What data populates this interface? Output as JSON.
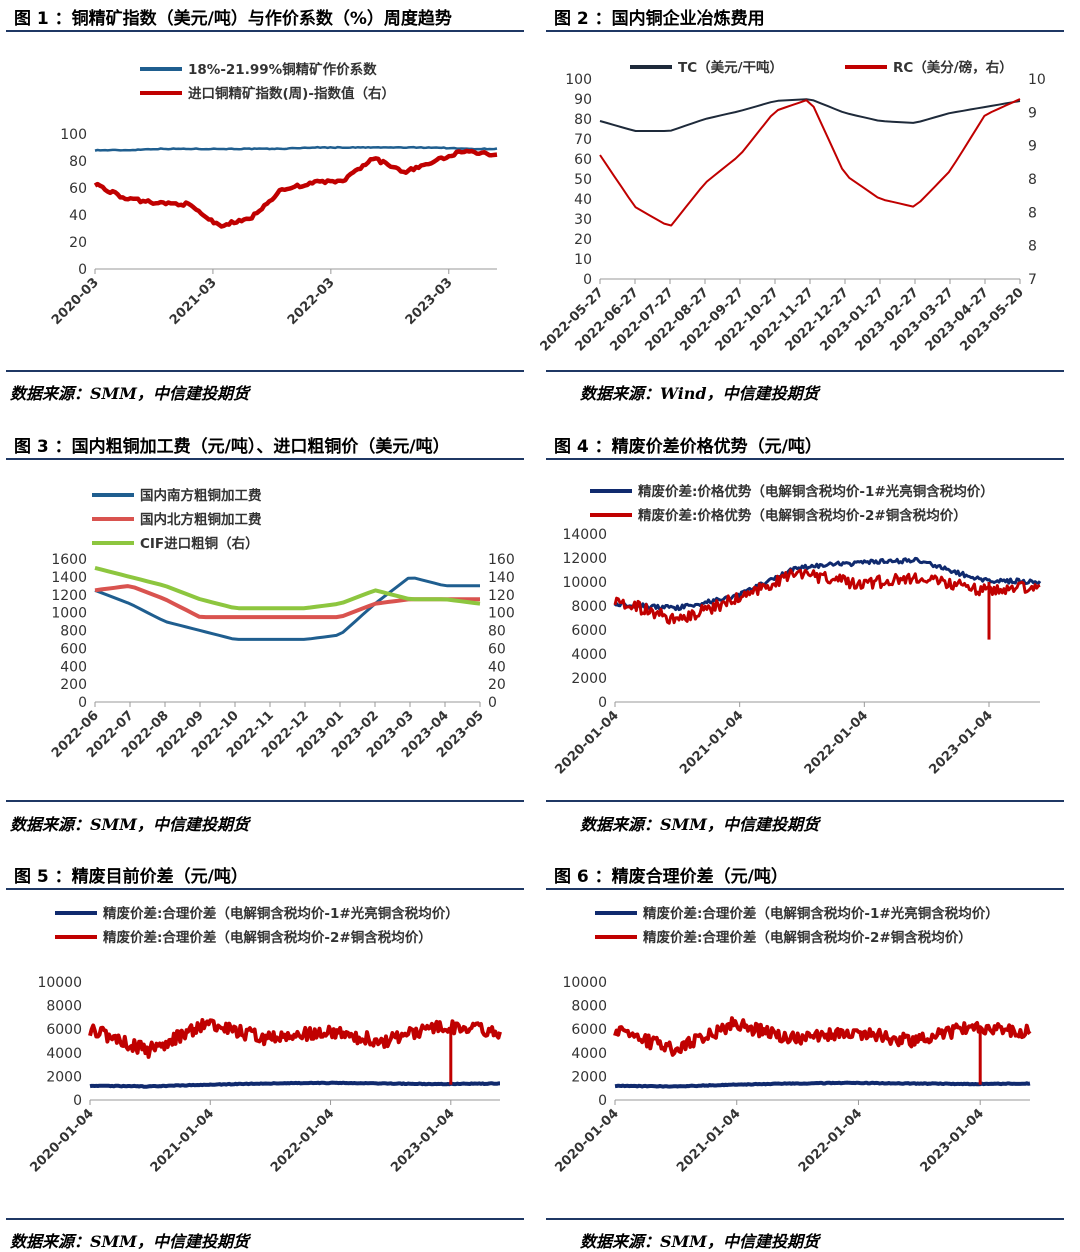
{
  "sources": {
    "row1_left": "数据来源：SMM，中信建投期货",
    "row1_right": "数据来源：Wind，中信建投期货",
    "row2_left": "数据来源：SMM，中信建投期货",
    "row2_right": "数据来源：SMM，中信建投期货",
    "row3_left": "数据来源：SMM，中信建投期货",
    "row3_right": "数据来源：SMM，中信建投期货"
  },
  "chart_data": [
    {
      "id": "fig1",
      "heading": "图 1 ：铜精矿指数（美元/吨）与作价系数（%）周度趋势",
      "type": "line",
      "x": [
        "2020-03",
        "2020-06",
        "2020-09",
        "2020-12",
        "2021-03",
        "2021-06",
        "2021-09",
        "2021-12",
        "2022-03",
        "2022-06",
        "2022-09",
        "2022-12",
        "2023-03",
        "2023-05"
      ],
      "xticks": [
        "2020-03",
        "2021-03",
        "2022-03",
        "2023-03"
      ],
      "ylim": [
        0,
        100
      ],
      "yticks": [
        "0",
        "20",
        "40",
        "60",
        "80",
        "100"
      ],
      "legend": "top",
      "series": [
        {
          "name": "18%-21.99%铜精矿作价系数",
          "color": "#1f5e8f",
          "values": [
            88,
            88,
            89,
            89,
            89,
            89,
            89,
            90,
            90,
            90,
            90,
            90,
            89,
            89
          ]
        },
        {
          "name": "进口铜精矿指数(周)-指数值（右）",
          "color": "#c00000",
          "values": [
            63,
            52,
            49,
            48,
            32,
            37,
            58,
            64,
            65,
            82,
            72,
            80,
            88,
            84
          ]
        }
      ]
    },
    {
      "id": "fig2",
      "heading": "图 2 ：国内铜企业冶炼费用",
      "type": "line",
      "x": [
        "2022-05-27",
        "2022-06-27",
        "2022-07-27",
        "2022-08-27",
        "2022-09-27",
        "2022-10-27",
        "2022-11-27",
        "2022-12-27",
        "2023-01-27",
        "2023-02-27",
        "2023-03-27",
        "2023-04-27",
        "2023-05-20"
      ],
      "ylim": [
        0,
        100
      ],
      "yticks": [
        "0",
        "10",
        "20",
        "30",
        "40",
        "50",
        "60",
        "70",
        "80",
        "90",
        "100"
      ],
      "y2lim": [
        7,
        9.5
      ],
      "y2ticks": [
        "7",
        "8",
        "8",
        "8",
        "9",
        "9",
        "10"
      ],
      "legend": "top",
      "series": [
        {
          "name": "TC（美元/干吨）",
          "color": "#1e2a3a",
          "values": [
            79,
            74,
            74,
            80,
            84,
            89,
            90,
            83,
            79,
            78,
            83,
            86,
            89
          ]
        },
        {
          "name": "RC（美分/磅，右）",
          "color": "#c00000",
          "values": [
            8.55,
            7.9,
            7.65,
            8.2,
            8.55,
            9.1,
            9.25,
            8.3,
            8.0,
            7.9,
            8.35,
            9.05,
            9.25
          ]
        }
      ]
    },
    {
      "id": "fig3",
      "heading": "图 3 ：国内粗铜加工费（元/吨）、进口粗铜价（美元/吨）",
      "type": "line",
      "x": [
        "2022-06",
        "2022-07",
        "2022-08",
        "2022-09",
        "2022-10",
        "2022-11",
        "2022-12",
        "2023-01",
        "2023-02",
        "2023-03",
        "2023-04",
        "2023-05"
      ],
      "ylim": [
        0,
        1600
      ],
      "yticks": [
        "0",
        "200",
        "400",
        "600",
        "800",
        "1000",
        "1200",
        "1400",
        "1600"
      ],
      "y2lim": [
        0,
        160
      ],
      "y2ticks": [
        "0",
        "20",
        "40",
        "60",
        "80",
        "100",
        "120",
        "140",
        "160"
      ],
      "legend": "top",
      "series": [
        {
          "name": "国内南方粗铜加工费",
          "color": "#1f5e8f",
          "values": [
            1250,
            1100,
            900,
            800,
            700,
            700,
            700,
            750,
            1100,
            1400,
            1300,
            1300
          ]
        },
        {
          "name": "国内北方粗铜加工费",
          "color": "#d9534f",
          "values": [
            1250,
            1300,
            1150,
            950,
            950,
            950,
            950,
            950,
            1100,
            1150,
            1150,
            1150
          ]
        },
        {
          "name": "CIF进口粗铜（右）",
          "color": "#8dc63f",
          "values": [
            150,
            140,
            130,
            115,
            105,
            105,
            105,
            110,
            125,
            115,
            115,
            110
          ]
        }
      ]
    },
    {
      "id": "fig4",
      "heading": "图 4 ：精废价差价格优势（元/吨）",
      "type": "line",
      "x": [
        "2020-01-04",
        "2020-07",
        "2021-01-04",
        "2021-07",
        "2022-01-04",
        "2022-07",
        "2023-01-04",
        "2023-05"
      ],
      "xticks": [
        "2020-01-04",
        "2021-01-04",
        "2022-01-04",
        "2023-01-04"
      ],
      "ylim": [
        0,
        14000
      ],
      "yticks": [
        "0",
        "2000",
        "4000",
        "6000",
        "8000",
        "10000",
        "12000",
        "14000"
      ],
      "legend": "top",
      "series": [
        {
          "name": "精废价差:价格优势（电解铜含税均价-1#光亮铜含税均价）",
          "color": "#102a6e",
          "values": [
            8200,
            7800,
            8800,
            11200,
            11600,
            11800,
            10200,
            10000
          ]
        },
        {
          "name": "精废价差:价格优势（电解铜含税均价-2#铜含税均价）",
          "color": "#c00000",
          "values": [
            8600,
            6800,
            8600,
            10800,
            9800,
            10400,
            9400,
            9600
          ]
        }
      ]
    },
    {
      "id": "fig5",
      "heading": "图 5 ：精废目前价差（元/吨）",
      "type": "line",
      "x": [
        "2020-01-04",
        "2020-07",
        "2021-01-04",
        "2021-07",
        "2022-01-04",
        "2022-07",
        "2023-01-04",
        "2023-05"
      ],
      "xticks": [
        "2020-01-04",
        "2021-01-04",
        "2022-01-04",
        "2023-01-04"
      ],
      "ylim": [
        0,
        10000
      ],
      "yticks": [
        "0",
        "2000",
        "4000",
        "6000",
        "8000",
        "10000"
      ],
      "legend": "top",
      "series": [
        {
          "name": "精废价差:合理价差（电解铜含税均价-1#光亮铜含税均价）",
          "color": "#102a6e",
          "values": [
            1200,
            1150,
            1300,
            1400,
            1450,
            1400,
            1350,
            1400
          ]
        },
        {
          "name": "精废价差:合理价差（电解铜含税均价-2#铜含税均价）",
          "color": "#c00000",
          "values": [
            6000,
            4200,
            6500,
            5200,
            5800,
            5000,
            6200,
            5800
          ]
        }
      ]
    },
    {
      "id": "fig6",
      "heading": "图 6 ：精废合理价差（元/吨）",
      "type": "line",
      "x": [
        "2020-01-04",
        "2020-07",
        "2021-01-04",
        "2021-07",
        "2022-01-04",
        "2022-07",
        "2023-01-04",
        "2023-05"
      ],
      "xticks": [
        "2020-01-04",
        "2021-01-04",
        "2022-01-04",
        "2023-01-04"
      ],
      "ylim": [
        0,
        10000
      ],
      "yticks": [
        "0",
        "2000",
        "4000",
        "6000",
        "8000",
        "10000"
      ],
      "legend": "top",
      "series": [
        {
          "name": "精废价差:合理价差（电解铜含税均价-1#光亮铜含税均价）",
          "color": "#102a6e",
          "values": [
            1200,
            1150,
            1300,
            1400,
            1450,
            1400,
            1350,
            1400
          ]
        },
        {
          "name": "精废价差:合理价差（电解铜含税均价-2#铜含税均价）",
          "color": "#c00000",
          "values": [
            6000,
            4200,
            6500,
            5200,
            5800,
            5000,
            6200,
            5800
          ]
        }
      ]
    }
  ]
}
